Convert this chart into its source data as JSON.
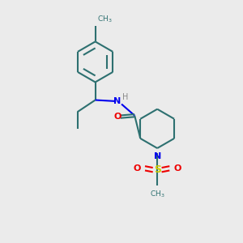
{
  "bg_color": "#ebebeb",
  "bond_color": "#2d7070",
  "bond_width": 1.5,
  "N_color": "#0000ee",
  "O_color": "#ee0000",
  "S_color": "#cccc00",
  "figsize": [
    3.0,
    3.0
  ],
  "dpi": 100,
  "xlim": [
    0,
    10
  ],
  "ylim": [
    0,
    10
  ]
}
